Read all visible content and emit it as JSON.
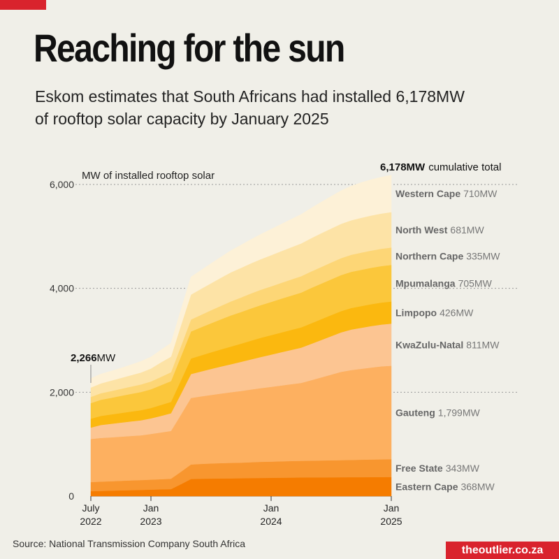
{
  "header": {
    "title": "Reaching for the sun",
    "subtitle": "Eskom estimates that South Africans had installed 6,178MW of rooftop solar capacity by January 2025"
  },
  "footer": {
    "source": "Source: National Transmission Company South Africa",
    "brand": "theoutlier.co.za"
  },
  "chart_data": {
    "type": "area",
    "stacked": true,
    "ylabel": "MW of installed rooftop solar",
    "ylim": [
      0,
      6200
    ],
    "yticks": [
      0,
      2000,
      4000,
      6000
    ],
    "ytick_labels": [
      "0",
      "2,000",
      "4,000",
      "6,000"
    ],
    "x_ticks": [
      {
        "month": 0,
        "line1": "July",
        "line2": "2022"
      },
      {
        "month": 6,
        "line1": "Jan",
        "line2": "2023"
      },
      {
        "month": 18,
        "line1": "Jan",
        "line2": "2024"
      },
      {
        "month": 30,
        "line1": "Jan",
        "line2": "2025"
      }
    ],
    "x_months": [
      0,
      1,
      2,
      3,
      4,
      5,
      6,
      7,
      8,
      9,
      10,
      11,
      12,
      13,
      14,
      15,
      16,
      17,
      18,
      19,
      20,
      21,
      22,
      23,
      24,
      25,
      26,
      27,
      28,
      29,
      30
    ],
    "start_annotation": {
      "value": "2,266",
      "unit": "MW"
    },
    "end_annotation": {
      "value": "6,178MW",
      "text": "cumulative total"
    },
    "series": [
      {
        "name": "Eastern Cape",
        "label_value": "368MW",
        "color": "#f57c00",
        "values": [
          95,
          100,
          105,
          110,
          115,
          120,
          125,
          130,
          135,
          230,
          330,
          335,
          338,
          340,
          342,
          345,
          348,
          350,
          352,
          355,
          357,
          359,
          360,
          361,
          362,
          363,
          364,
          365,
          366,
          367,
          368
        ]
      },
      {
        "name": "Free State",
        "label_value": "343MW",
        "color": "#f8962f",
        "values": [
          175,
          180,
          182,
          185,
          188,
          190,
          192,
          195,
          200,
          240,
          280,
          285,
          290,
          295,
          298,
          300,
          305,
          310,
          312,
          315,
          318,
          320,
          322,
          325,
          328,
          330,
          333,
          336,
          339,
          341,
          343
        ]
      },
      {
        "name": "Gauteng",
        "label_value": "1,799MW",
        "color": "#fdb060",
        "values": [
          830,
          840,
          845,
          850,
          855,
          860,
          880,
          900,
          920,
          1100,
          1280,
          1300,
          1320,
          1340,
          1360,
          1380,
          1400,
          1420,
          1440,
          1460,
          1480,
          1500,
          1550,
          1600,
          1650,
          1700,
          1730,
          1750,
          1770,
          1790,
          1799
        ]
      },
      {
        "name": "KwaZulu-Natal",
        "label_value": "811MW",
        "color": "#fcc592",
        "values": [
          220,
          250,
          260,
          270,
          280,
          290,
          300,
          320,
          340,
          400,
          460,
          480,
          500,
          520,
          540,
          560,
          580,
          600,
          620,
          640,
          660,
          680,
          700,
          720,
          740,
          760,
          780,
          790,
          800,
          805,
          811
        ]
      },
      {
        "name": "Limpopo",
        "label_value": "426MW",
        "color": "#fbb80f",
        "values": [
          170,
          175,
          180,
          185,
          190,
          195,
          200,
          210,
          220,
          260,
          300,
          310,
          320,
          330,
          340,
          350,
          360,
          370,
          375,
          380,
          385,
          390,
          395,
          400,
          405,
          410,
          415,
          418,
          420,
          423,
          426
        ]
      },
      {
        "name": "Mpumalanga",
        "label_value": "705MW",
        "color": "#fbc73b",
        "values": [
          300,
          310,
          320,
          330,
          340,
          350,
          360,
          380,
          400,
          460,
          520,
          540,
          560,
          580,
          600,
          610,
          620,
          630,
          640,
          650,
          660,
          670,
          680,
          685,
          690,
          693,
          696,
          699,
          701,
          703,
          705
        ]
      },
      {
        "name": "Northern Cape",
        "label_value": "335MW",
        "color": "#fdd676",
        "values": [
          120,
          125,
          130,
          135,
          140,
          145,
          150,
          160,
          170,
          200,
          230,
          240,
          250,
          260,
          270,
          280,
          290,
          295,
          300,
          305,
          310,
          315,
          318,
          320,
          323,
          326,
          328,
          330,
          332,
          334,
          335
        ]
      },
      {
        "name": "North West",
        "label_value": "681MW",
        "color": "#fde3a6",
        "values": [
          180,
          190,
          200,
          210,
          220,
          230,
          250,
          280,
          300,
          400,
          480,
          500,
          520,
          540,
          560,
          570,
          580,
          590,
          600,
          610,
          620,
          630,
          640,
          650,
          655,
          660,
          665,
          670,
          675,
          678,
          681
        ]
      },
      {
        "name": "Western Cape",
        "label_value": "710MW",
        "color": "#fdf1d7",
        "values": [
          176,
          180,
          185,
          190,
          200,
          215,
          223,
          240,
          260,
          300,
          340,
          360,
          380,
          400,
          420,
          440,
          460,
          480,
          500,
          520,
          540,
          560,
          580,
          600,
          620,
          640,
          660,
          680,
          690,
          700,
          710
        ]
      }
    ]
  }
}
